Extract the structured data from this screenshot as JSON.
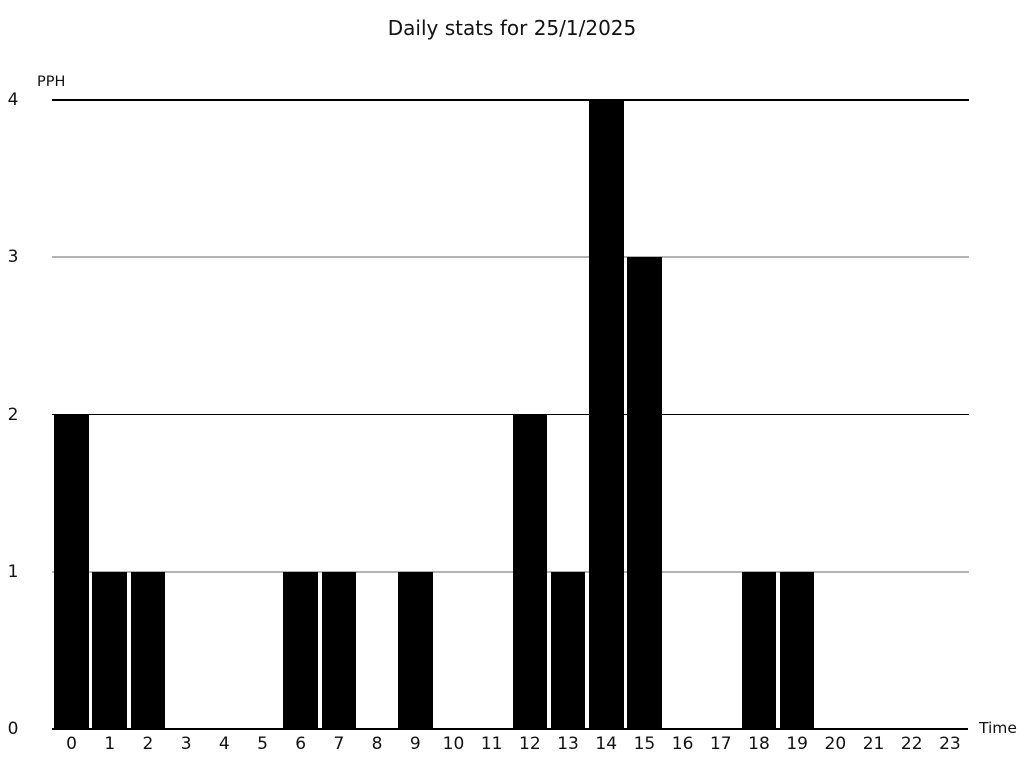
{
  "chart_data": {
    "type": "bar",
    "title": "Daily stats for 25/1/2025",
    "xlabel": "Time",
    "ylabel": "PPH",
    "categories": [
      "0",
      "1",
      "2",
      "3",
      "4",
      "5",
      "6",
      "7",
      "8",
      "9",
      "10",
      "11",
      "12",
      "13",
      "14",
      "15",
      "16",
      "17",
      "18",
      "19",
      "20",
      "21",
      "22",
      "23"
    ],
    "values": [
      2,
      1,
      1,
      0,
      0,
      0,
      1,
      1,
      0,
      1,
      0,
      0,
      2,
      1,
      4,
      3,
      0,
      0,
      1,
      1,
      0,
      0,
      0,
      0
    ],
    "ylim": [
      0,
      4
    ],
    "yticks": [
      0,
      1,
      2,
      3,
      4
    ],
    "bar_color": "#000000",
    "axis_color": "#000000",
    "grid_major_color": "#000000",
    "grid_minor_color": "#b3b3b3",
    "background_color": "#ffffff",
    "grid": "horizontal",
    "legend_position": "none"
  }
}
